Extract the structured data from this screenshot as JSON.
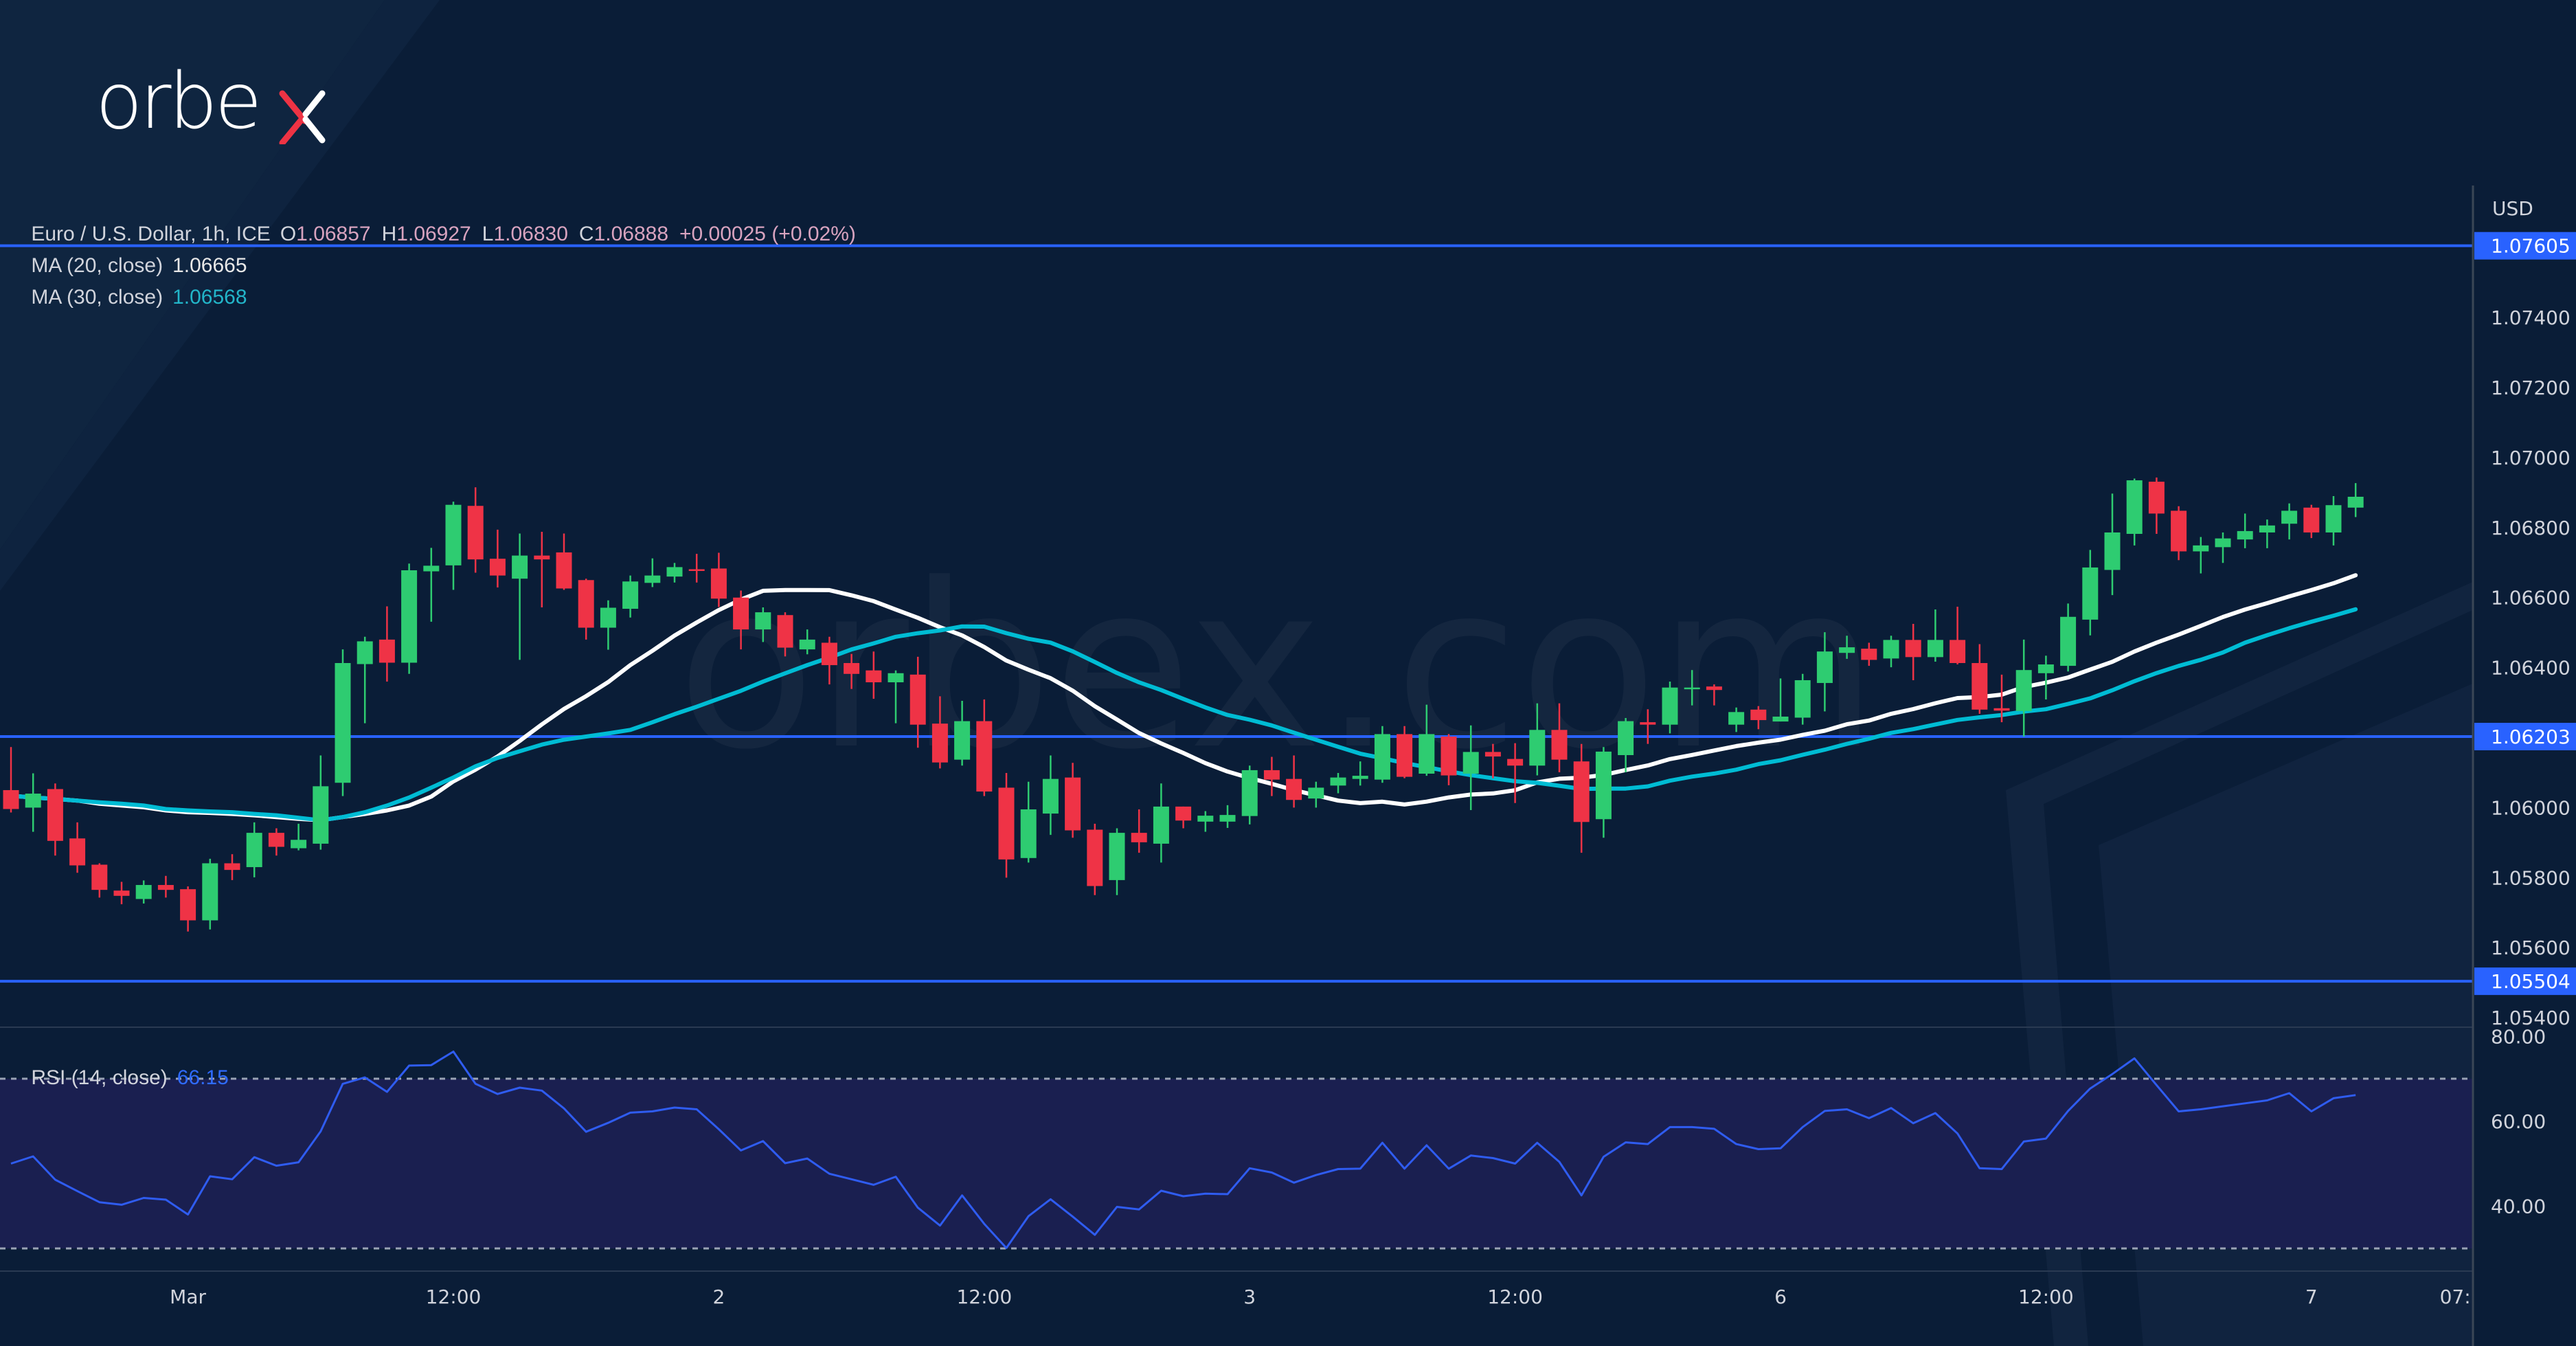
{
  "brand": {
    "logo_text": "orbex",
    "watermark": "orbex.com",
    "logo_accent": "#ee3344"
  },
  "legend": {
    "symbol": "Euro / U.S. Dollar, 1h, ICE",
    "open_label": "O",
    "open": "1.06857",
    "high_label": "H",
    "high": "1.06927",
    "low_label": "L",
    "low": "1.06830",
    "close_label": "C",
    "close": "1.06888",
    "change": "+0.00025 (+0.02%)",
    "ma20_label": "MA (20, close)",
    "ma20_value": "1.06665",
    "ma30_label": "MA (30, close)",
    "ma30_value": "1.06568",
    "rsi_label": "RSI (14, close)",
    "rsi_value": "66.15"
  },
  "colors": {
    "background": "#0a1d37",
    "up": "#2ecc71",
    "down": "#ef3346",
    "ma20": "#ffffff",
    "ma30": "#00bcd4",
    "hline": "#2962ff",
    "rsi": "#2f5cf0",
    "rsi_band": "#1a1f50",
    "axis_text": "#d1d4dc"
  },
  "chart_data": [
    {
      "type": "candlestick",
      "title": "Euro / U.S. Dollar, 1h, ICE",
      "currency_label": "USD",
      "ylim": [
        1.0535,
        1.0775
      ],
      "y_ticks": [
        "1.07400",
        "1.07200",
        "1.07000",
        "1.06800",
        "1.06600",
        "1.06400",
        "1.06000",
        "1.05800",
        "1.05600",
        "1.05400"
      ],
      "x_ticks": [
        {
          "label": "Mar",
          "candle": 8
        },
        {
          "label": "12:00",
          "candle": 20
        },
        {
          "label": "2",
          "candle": 32
        },
        {
          "label": "12:00",
          "candle": 44
        },
        {
          "label": "3",
          "candle": 56
        },
        {
          "label": "12:00",
          "candle": 68
        },
        {
          "label": "6",
          "candle": 80
        },
        {
          "label": "12:00",
          "candle": 92
        },
        {
          "label": "7",
          "candle": 104
        },
        {
          "label": "07:",
          "candle": 110.5
        }
      ],
      "horizontal_lines": [
        {
          "value": 1.07605,
          "label": "1.07605"
        },
        {
          "value": 1.06203,
          "label": "1.06203"
        },
        {
          "value": 1.05504,
          "label": "1.05504"
        }
      ],
      "ohlc": [
        [
          1.0605,
          1.06173,
          1.05986,
          1.05996
        ],
        [
          1.06,
          1.06098,
          1.05931,
          1.0604
        ],
        [
          1.06053,
          1.06069,
          1.05863,
          1.05905
        ],
        [
          1.05912,
          1.05958,
          1.05814,
          1.05835
        ],
        [
          1.05837,
          1.05841,
          1.05743,
          1.05765
        ],
        [
          1.05763,
          1.05788,
          1.05724,
          1.05748
        ],
        [
          1.05739,
          1.05792,
          1.05726,
          1.05779
        ],
        [
          1.05779,
          1.05805,
          1.05743,
          1.05765
        ],
        [
          1.05767,
          1.05775,
          1.05646,
          1.05678
        ],
        [
          1.05678,
          1.05854,
          1.05652,
          1.05841
        ],
        [
          1.05841,
          1.05867,
          1.05793,
          1.05822
        ],
        [
          1.0583,
          1.05958,
          1.05801,
          1.05928
        ],
        [
          1.05928,
          1.05941,
          1.05863,
          1.05888
        ],
        [
          1.05884,
          1.05954,
          1.05878,
          1.05908
        ],
        [
          1.05897,
          1.06149,
          1.0588,
          1.06061
        ],
        [
          1.06071,
          1.06452,
          1.06033,
          1.06413
        ],
        [
          1.0641,
          1.06488,
          1.06241,
          1.06475
        ],
        [
          1.0648,
          1.06575,
          1.0636,
          1.06414
        ],
        [
          1.06414,
          1.06697,
          1.06382,
          1.06678
        ],
        [
          1.06675,
          1.06742,
          1.06531,
          1.06691
        ],
        [
          1.06692,
          1.06874,
          1.06622,
          1.06865
        ],
        [
          1.06862,
          1.06915,
          1.06671,
          1.06709
        ],
        [
          1.06711,
          1.06794,
          1.06629,
          1.06663
        ],
        [
          1.06654,
          1.06783,
          1.06422,
          1.0672
        ],
        [
          1.0672,
          1.06788,
          1.06572,
          1.06709
        ],
        [
          1.06729,
          1.06783,
          1.06622,
          1.06626
        ],
        [
          1.0665,
          1.06654,
          1.0648,
          1.06514
        ],
        [
          1.06514,
          1.06592,
          1.06451,
          1.06571
        ],
        [
          1.06568,
          1.06663,
          1.06543,
          1.06646
        ],
        [
          1.06642,
          1.06712,
          1.0663,
          1.06663
        ],
        [
          1.0666,
          1.06699,
          1.06643,
          1.06687
        ],
        [
          1.06681,
          1.06725,
          1.06643,
          1.06676
        ],
        [
          1.06683,
          1.06728,
          1.06573,
          1.06597
        ],
        [
          1.066,
          1.0662,
          1.06452,
          1.06509
        ],
        [
          1.06509,
          1.06572,
          1.06473,
          1.06558
        ],
        [
          1.0655,
          1.06558,
          1.06432,
          1.06457
        ],
        [
          1.06452,
          1.06509,
          1.06438,
          1.0648
        ],
        [
          1.06471,
          1.06488,
          1.06352,
          1.06407
        ],
        [
          1.06413,
          1.06439,
          1.06339,
          1.06382
        ],
        [
          1.06392,
          1.06446,
          1.06311,
          1.06358
        ],
        [
          1.06358,
          1.06392,
          1.06241,
          1.06384
        ],
        [
          1.0638,
          1.06431,
          1.06171,
          1.06237
        ],
        [
          1.0624,
          1.06318,
          1.06112,
          1.06129
        ],
        [
          1.06137,
          1.06305,
          1.0612,
          1.06247
        ],
        [
          1.06247,
          1.06309,
          1.06033,
          1.06046
        ],
        [
          1.06057,
          1.06099,
          1.058,
          1.05852
        ],
        [
          1.05856,
          1.06074,
          1.05843,
          1.05995
        ],
        [
          1.05983,
          1.06149,
          1.05922,
          1.06082
        ],
        [
          1.06086,
          1.06128,
          1.05914,
          1.05935
        ],
        [
          1.05937,
          1.05954,
          1.0575,
          1.05776
        ],
        [
          1.05793,
          1.05941,
          1.0575,
          1.05928
        ],
        [
          1.05928,
          1.05995,
          1.05871,
          1.05901
        ],
        [
          1.05897,
          1.06069,
          1.05843,
          1.06003
        ],
        [
          1.06003,
          1.06003,
          1.05941,
          1.05963
        ],
        [
          1.0596,
          1.0599,
          1.05931,
          1.05977
        ],
        [
          1.0596,
          1.06007,
          1.05942,
          1.05979
        ],
        [
          1.05976,
          1.0612,
          1.05952,
          1.06107
        ],
        [
          1.06107,
          1.06145,
          1.06033,
          1.0608
        ],
        [
          1.06082,
          1.06149,
          1.06,
          1.06022
        ],
        [
          1.06026,
          1.06074,
          1.06,
          1.06057
        ],
        [
          1.06063,
          1.06099,
          1.06041,
          1.06086
        ],
        [
          1.06082,
          1.06132,
          1.06063,
          1.06091
        ],
        [
          1.0608,
          1.06233,
          1.06071,
          1.0621
        ],
        [
          1.0621,
          1.06233,
          1.06084,
          1.06088
        ],
        [
          1.06097,
          1.06294,
          1.06091,
          1.0621
        ],
        [
          1.06203,
          1.0621,
          1.06064,
          1.06092
        ],
        [
          1.06097,
          1.06235,
          1.05993,
          1.06159
        ],
        [
          1.06159,
          1.06182,
          1.06084,
          1.06146
        ],
        [
          1.06139,
          1.06184,
          1.06013,
          1.0612
        ],
        [
          1.0612,
          1.06298,
          1.06092,
          1.06222
        ],
        [
          1.06222,
          1.06298,
          1.06101,
          1.06137
        ],
        [
          1.06132,
          1.06182,
          1.05871,
          1.05959
        ],
        [
          1.05967,
          1.06173,
          1.05914,
          1.0616
        ],
        [
          1.0615,
          1.06256,
          1.06101,
          1.06247
        ],
        [
          1.06244,
          1.06281,
          1.06182,
          1.06237
        ],
        [
          1.06237,
          1.0636,
          1.06212,
          1.06343
        ],
        [
          1.0634,
          1.06393,
          1.06292,
          1.06343
        ],
        [
          1.06346,
          1.06352,
          1.06292,
          1.06336
        ],
        [
          1.06237,
          1.06286,
          1.06216,
          1.06273
        ],
        [
          1.0628,
          1.0629,
          1.06224,
          1.0625
        ],
        [
          1.06246,
          1.06369,
          1.06246,
          1.0626
        ],
        [
          1.06257,
          1.06382,
          1.06237,
          1.06364
        ],
        [
          1.06356,
          1.06501,
          1.06275,
          1.06446
        ],
        [
          1.06442,
          1.06491,
          1.06425,
          1.06458
        ],
        [
          1.06454,
          1.06471,
          1.06405,
          1.06422
        ],
        [
          1.06426,
          1.06491,
          1.06401,
          1.06479
        ],
        [
          1.06479,
          1.06525,
          1.06364,
          1.0643
        ],
        [
          1.0643,
          1.06566,
          1.06417,
          1.06479
        ],
        [
          1.06479,
          1.06574,
          1.06409,
          1.06413
        ],
        [
          1.06413,
          1.06467,
          1.06268,
          1.0628
        ],
        [
          1.06284,
          1.0638,
          1.06244,
          1.06277
        ],
        [
          1.06276,
          1.0648,
          1.06203,
          1.06393
        ],
        [
          1.06384,
          1.06434,
          1.06309,
          1.06409
        ],
        [
          1.06405,
          1.06583,
          1.06389,
          1.06545
        ],
        [
          1.06537,
          1.06736,
          1.06492,
          1.06686
        ],
        [
          1.06679,
          1.06897,
          1.06607,
          1.06786
        ],
        [
          1.06782,
          1.0694,
          1.06749,
          1.06935
        ],
        [
          1.06931,
          1.06943,
          1.06782,
          1.0684
        ],
        [
          1.06848,
          1.06861,
          1.06707,
          1.06732
        ],
        [
          1.06732,
          1.06773,
          1.06669,
          1.06749
        ],
        [
          1.06744,
          1.06786,
          1.06699,
          1.06769
        ],
        [
          1.06766,
          1.0684,
          1.06741,
          1.0679
        ],
        [
          1.06786,
          1.06823,
          1.06741,
          1.06806
        ],
        [
          1.06811,
          1.06869,
          1.06766,
          1.06848
        ],
        [
          1.06857,
          1.06865,
          1.0677,
          1.06786
        ],
        [
          1.06786,
          1.0689,
          1.06749,
          1.06864
        ],
        [
          1.06857,
          1.06927,
          1.0683,
          1.06888
        ]
      ],
      "moving_averages": [
        {
          "name": "MA (20, close)",
          "period": 20,
          "color": "#ffffff",
          "leading_values": [
            1.06034,
            1.06029,
            1.06025,
            1.0602,
            1.06011,
            1.06006,
            1.06001,
            1.05992,
            1.05987,
            1.05985,
            1.05982,
            1.05978,
            1.05973,
            1.05968,
            1.05964,
            1.05973,
            1.05982,
            1.05992,
            1.06006
          ]
        },
        {
          "name": "MA (30, close)",
          "period": 30,
          "color": "#00bcd4",
          "leading_values": [
            1.06034,
            1.06029,
            1.06025,
            1.0602,
            1.06015,
            1.06011,
            1.06006,
            1.05996,
            1.05992,
            1.05989,
            1.05987,
            1.05982,
            1.05978,
            1.05971,
            1.05964,
            1.05973,
            1.05987,
            1.06006,
            1.06029,
            1.06057,
            1.06086,
            1.06118,
            1.06142,
            1.06161,
            1.0618,
            1.06194,
            1.06203,
            1.06212,
            1.06222
          ]
        }
      ]
    },
    {
      "type": "line",
      "title": "RSI (14, close)",
      "ylim": [
        25,
        82
      ],
      "y_ticks": [
        "80.00",
        "60.00",
        "40.00"
      ],
      "bands": [
        70,
        30
      ],
      "values": [
        50.0,
        51.7,
        46.2,
        43.5,
        40.9,
        40.3,
        41.9,
        41.5,
        38.0,
        47.0,
        46.3,
        51.5,
        49.5,
        50.3,
        57.6,
        68.8,
        70.3,
        66.9,
        73.1,
        73.2,
        76.4,
        68.8,
        66.4,
        67.9,
        67.2,
        63.0,
        57.5,
        59.6,
        62.0,
        62.3,
        63.2,
        62.8,
        58.1,
        53.1,
        55.3,
        50.1,
        51.2,
        47.6,
        46.3,
        45.0,
        46.9,
        39.6,
        35.4,
        42.5,
        35.8,
        30.1,
        37.6,
        41.6,
        37.5,
        33.2,
        39.8,
        39.2,
        43.6,
        42.3,
        42.9,
        42.8,
        48.9,
        47.9,
        45.5,
        47.3,
        48.7,
        48.8,
        54.9,
        48.8,
        54.3,
        48.8,
        51.9,
        51.3,
        50.0,
        54.9,
        50.4,
        42.5,
        51.6,
        55.0,
        54.6,
        58.6,
        58.6,
        58.2,
        54.6,
        53.4,
        53.6,
        58.6,
        62.4,
        62.8,
        60.7,
        63.1,
        59.5,
        61.9,
        57.1,
        48.9,
        48.7,
        55.2,
        55.9,
        62.4,
        67.7,
        71.1,
        74.8,
        68.5,
        62.3,
        62.8,
        63.5,
        64.2,
        64.9,
        66.6,
        62.3,
        65.4,
        66.15
      ]
    }
  ]
}
